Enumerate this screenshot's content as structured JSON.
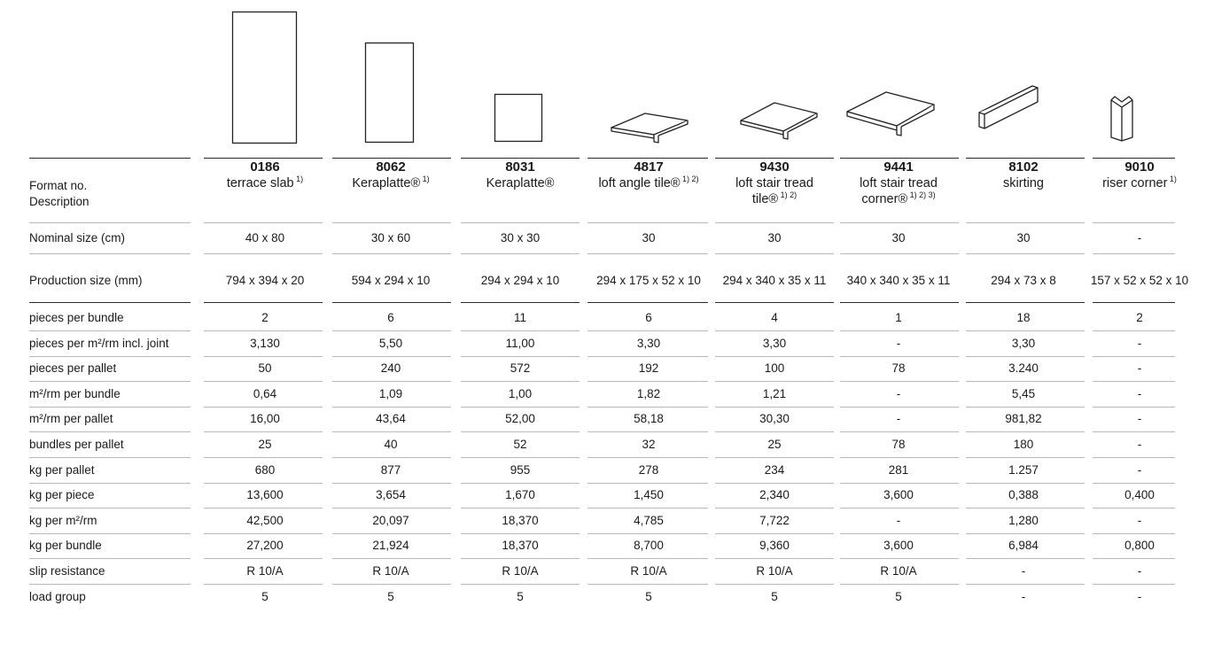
{
  "header_labels": {
    "format": "Format no.",
    "description": "Description"
  },
  "columns": [
    {
      "no": "0186",
      "desc": "terrace slab",
      "desc2": "",
      "sup": "1)",
      "icon": "tall-rectangle-slab-icon"
    },
    {
      "no": "8062",
      "desc": "Keraplatte®",
      "desc2": "",
      "sup": "1)",
      "icon": "rectangle-slab-icon"
    },
    {
      "no": "8031",
      "desc": "Keraplatte®",
      "desc2": "",
      "sup": "",
      "icon": "square-tile-icon"
    },
    {
      "no": "4817",
      "desc": "loft angle tile®",
      "desc2": "",
      "sup": "1) 2)",
      "icon": "angle-tile-icon"
    },
    {
      "no": "9430",
      "desc": "loft stair tread",
      "desc2": "tile®",
      "sup": "1) 2)",
      "icon": "stair-tread-icon"
    },
    {
      "no": "9441",
      "desc": "loft stair tread",
      "desc2": "corner®",
      "sup": "1) 2) 3)",
      "icon": "stair-corner-icon"
    },
    {
      "no": "8102",
      "desc": "skirting",
      "desc2": "",
      "sup": "",
      "icon": "skirting-icon"
    },
    {
      "no": "9010",
      "desc": "riser corner",
      "desc2": "",
      "sup": "1)",
      "icon": "riser-corner-icon"
    }
  ],
  "size_rows": [
    {
      "label": "Nominal size (cm)",
      "values": [
        "40 x 80",
        "30 x 60",
        "30 x 30",
        "30",
        "30",
        "30",
        "30",
        "-"
      ]
    },
    {
      "label": "Production size (mm)",
      "values": [
        "794 x 394 x 20",
        "594 x 294 x 10",
        "294 x 294 x 10",
        "294 x 175 x 52 x 10",
        "294 x 340 x 35 x 11",
        "340 x 340 x 35 x 11",
        "294 x 73 x 8",
        "157 x 52 x 52 x 10"
      ]
    }
  ],
  "data_rows": [
    {
      "label": "pieces per bundle",
      "values": [
        "2",
        "6",
        "11",
        "6",
        "4",
        "1",
        "18",
        "2"
      ]
    },
    {
      "label": "pieces per m²/rm incl. joint",
      "values": [
        "3,130",
        "5,50",
        "11,00",
        "3,30",
        "3,30",
        "-",
        "3,30",
        "-"
      ]
    },
    {
      "label": "pieces per pallet",
      "values": [
        "50",
        "240",
        "572",
        "192",
        "100",
        "78",
        "3.240",
        "-"
      ]
    },
    {
      "label": "m²/rm per bundle",
      "values": [
        "0,64",
        "1,09",
        "1,00",
        "1,82",
        "1,21",
        "-",
        "5,45",
        "-"
      ]
    },
    {
      "label": "m²/rm per pallet",
      "values": [
        "16,00",
        "43,64",
        "52,00",
        "58,18",
        "30,30",
        "-",
        "981,82",
        "-"
      ]
    },
    {
      "label": "bundles per pallet",
      "values": [
        "25",
        "40",
        "52",
        "32",
        "25",
        "78",
        "180",
        "-"
      ]
    },
    {
      "label": "kg per pallet",
      "values": [
        "680",
        "877",
        "955",
        "278",
        "234",
        "281",
        "1.257",
        "-"
      ]
    },
    {
      "label": "kg per piece",
      "values": [
        "13,600",
        "3,654",
        "1,670",
        "1,450",
        "2,340",
        "3,600",
        "0,388",
        "0,400"
      ]
    },
    {
      "label": "kg per m²/rm",
      "values": [
        "42,500",
        "20,097",
        "18,370",
        "4,785",
        "7,722",
        "-",
        "1,280",
        "-"
      ]
    },
    {
      "label": "kg per bundle",
      "values": [
        "27,200",
        "21,924",
        "18,370",
        "8,700",
        "9,360",
        "3,600",
        "6,984",
        "0,800"
      ]
    },
    {
      "label": "slip resistance",
      "values": [
        "R 10/A",
        "R 10/A",
        "R 10/A",
        "R 10/A",
        "R 10/A",
        "R 10/A",
        "-",
        "-"
      ]
    },
    {
      "label": "load group",
      "values": [
        "5",
        "5",
        "5",
        "5",
        "5",
        "5",
        "-",
        "-"
      ]
    }
  ]
}
